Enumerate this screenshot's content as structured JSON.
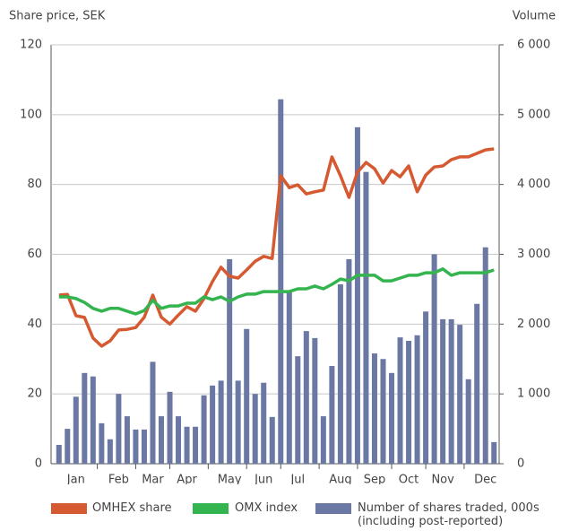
{
  "chart_data": {
    "type": "bar-line",
    "y_label": "Share price, SEK",
    "y2_label": "Volume",
    "categories": [
      null,
      null,
      "Jan",
      null,
      null,
      null,
      null,
      "Feb",
      null,
      null,
      null,
      "Mar",
      null,
      null,
      null,
      "Apr",
      null,
      null,
      null,
      null,
      "May",
      null,
      null,
      null,
      "Jun",
      null,
      null,
      null,
      "Jul",
      null,
      null,
      null,
      null,
      "Aug",
      null,
      null,
      null,
      "Sep",
      null,
      null,
      null,
      "Oct",
      null,
      null,
      null,
      "Nov",
      null,
      null,
      null,
      null,
      "Dec",
      null
    ],
    "ylim": [
      0,
      120
    ],
    "yticks": [
      0,
      20,
      40,
      60,
      80,
      100,
      120
    ],
    "y2lim": [
      0,
      6000
    ],
    "y2ticks": [
      0,
      {
        "value": 1000,
        "label": "1 000"
      },
      {
        "value": 2000,
        "label": "2 000"
      },
      {
        "value": 3000,
        "label": "3 000"
      },
      {
        "value": 4000,
        "label": "4 000"
      },
      {
        "value": 5000,
        "label": "5 000"
      },
      {
        "value": 6000,
        "label": "6 000"
      }
    ],
    "grid": true,
    "series": [
      {
        "name": "OMHEX share",
        "type": "line",
        "color": "#d65a31",
        "values": [
          48.3,
          48.5,
          42.4,
          41.9,
          36,
          33.7,
          35.2,
          38.3,
          38.5,
          39,
          42,
          48.3,
          42,
          40,
          42.6,
          45,
          43.7,
          47.3,
          52.2,
          56.3,
          53.7,
          53.2,
          55.5,
          58,
          59.4,
          58.8,
          82.5,
          79.1,
          79.9,
          77.3,
          77.9,
          78.4,
          87.9,
          82.5,
          76.3,
          83.5,
          86.3,
          84.5,
          80.4,
          84,
          82.2,
          85.3,
          77.9,
          82.7,
          85,
          85.3,
          87.1,
          87.9,
          87.9,
          88.9,
          89.9,
          90.2
        ]
      },
      {
        "name": "OMX index",
        "type": "line",
        "color": "#34b44e",
        "values": [
          47.8,
          47.8,
          47.3,
          46.2,
          44.5,
          43.7,
          44.5,
          44.5,
          43.7,
          42.9,
          43.9,
          46.8,
          44.5,
          45.2,
          45.2,
          46,
          46,
          47.8,
          47,
          47.8,
          46.5,
          47.8,
          48.6,
          48.6,
          49.3,
          49.3,
          49.3,
          49.3,
          50.1,
          50.1,
          50.9,
          50.1,
          51.4,
          52.9,
          52.4,
          54,
          54,
          54,
          52.4,
          52.4,
          53.2,
          54,
          54,
          54.7,
          54.7,
          55.8,
          54,
          54.7,
          54.7,
          54.7,
          54.7,
          55.5
        ]
      },
      {
        "name": "Number of shares traded, 000s (including post-reported)",
        "type": "bar",
        "axis": "y2",
        "color": "#6a78a3",
        "values": [
          270,
          500,
          960,
          1300,
          1250,
          580,
          350,
          1000,
          680,
          490,
          490,
          1460,
          680,
          1030,
          680,
          530,
          530,
          980,
          1120,
          1190,
          2930,
          1190,
          1930,
          1000,
          1160,
          670,
          5220,
          2470,
          1540,
          1900,
          1800,
          680,
          1400,
          2570,
          2930,
          4820,
          4180,
          1580,
          1500,
          1300,
          1810,
          1760,
          1840,
          2180,
          3000,
          2070,
          2070,
          1990,
          1210,
          2290,
          3100,
          310
        ]
      }
    ]
  }
}
